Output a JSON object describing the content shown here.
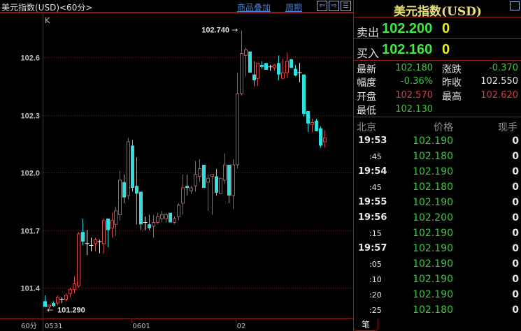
{
  "window": {
    "title": "美元指数(USD)<60分>",
    "overlay_link": "商品叠加",
    "period_link": "周期"
  },
  "chart_data": {
    "type": "candlestick",
    "indicator_label": "K",
    "period_label": "60分",
    "yticks": [
      "101.4",
      "101.7",
      "102.0",
      "102.3",
      "102.6"
    ],
    "ylim": [
      101.25,
      102.79
    ],
    "xlabels": [
      {
        "text": "0531",
        "index": 0
      },
      {
        "text": "0601",
        "index": 21
      },
      {
        "text": "02",
        "index": 46
      }
    ],
    "max_label": "102.740",
    "min_label": "101.290",
    "colors": {
      "up": "#d04848",
      "down": "#30e0e0",
      "flat": "#ffffff",
      "grid": "#8b1a1a"
    },
    "candles": [
      [
        101.33,
        101.36,
        101.3,
        101.3
      ],
      [
        101.3,
        101.31,
        101.29,
        101.31
      ],
      [
        101.32,
        101.33,
        101.3,
        101.305
      ],
      [
        101.32,
        101.36,
        101.31,
        101.35
      ],
      [
        101.34,
        101.35,
        101.32,
        101.34
      ],
      [
        101.34,
        101.37,
        101.33,
        101.36
      ],
      [
        101.37,
        101.4,
        101.35,
        101.39
      ],
      [
        101.39,
        101.46,
        101.37,
        101.42
      ],
      [
        101.41,
        101.69,
        101.4,
        101.68
      ],
      [
        101.69,
        101.76,
        101.62,
        101.64
      ],
      [
        101.63,
        101.7,
        101.57,
        101.63
      ],
      [
        101.62,
        101.66,
        101.59,
        101.62
      ],
      [
        101.63,
        101.66,
        101.59,
        101.65
      ],
      [
        101.64,
        101.65,
        101.58,
        101.64
      ],
      [
        101.63,
        101.76,
        101.58,
        101.75
      ],
      [
        101.76,
        101.76,
        101.61,
        101.7
      ],
      [
        101.71,
        101.79,
        101.66,
        101.75
      ],
      [
        101.73,
        101.82,
        101.67,
        101.8
      ],
      [
        101.78,
        102.01,
        101.75,
        101.96
      ],
      [
        101.95,
        101.99,
        101.84,
        101.87
      ],
      [
        101.88,
        102.18,
        101.86,
        102.16
      ],
      [
        102.14,
        102.17,
        101.9,
        101.92
      ],
      [
        101.93,
        102.08,
        101.73,
        101.89
      ],
      [
        101.9,
        101.9,
        101.7,
        101.73
      ],
      [
        101.74,
        101.77,
        101.7,
        101.74
      ],
      [
        101.73,
        101.78,
        101.7,
        101.71
      ],
      [
        101.72,
        101.78,
        101.66,
        101.74
      ],
      [
        101.74,
        101.79,
        101.73,
        101.77
      ],
      [
        101.76,
        101.8,
        101.74,
        101.78
      ],
      [
        101.76,
        101.79,
        101.74,
        101.78
      ],
      [
        101.79,
        101.79,
        101.74,
        101.74
      ],
      [
        101.74,
        101.77,
        101.73,
        101.76
      ],
      [
        101.77,
        101.84,
        101.75,
        101.83
      ],
      [
        101.84,
        101.99,
        101.78,
        101.92
      ],
      [
        101.93,
        101.99,
        101.88,
        101.92
      ],
      [
        101.905,
        101.93,
        101.89,
        101.92
      ],
      [
        101.93,
        102.06,
        101.9,
        101.99
      ],
      [
        101.98,
        102.07,
        101.95,
        102.02
      ],
      [
        102.04,
        102.04,
        101.92,
        101.92
      ],
      [
        101.95,
        101.99,
        101.8,
        101.97
      ],
      [
        101.98,
        101.99,
        101.78,
        101.99
      ],
      [
        101.98,
        102.02,
        101.88,
        101.895
      ],
      [
        101.89,
        101.97,
        101.89,
        101.97
      ],
      [
        101.96,
        102.1,
        101.94,
        102.04
      ],
      [
        102.04,
        102.04,
        101.84,
        101.88
      ],
      [
        101.88,
        102.07,
        101.81,
        102.04
      ],
      [
        102.04,
        102.52,
        102.02,
        102.41
      ],
      [
        102.41,
        102.74,
        102.4,
        102.62
      ],
      [
        102.61,
        102.65,
        102.5,
        102.64
      ],
      [
        102.63,
        102.63,
        102.53,
        102.52
      ],
      [
        102.51,
        102.58,
        102.45,
        102.48
      ],
      [
        102.49,
        102.57,
        102.45,
        102.57
      ],
      [
        102.56,
        102.58,
        102.54,
        102.55
      ],
      [
        102.57,
        102.57,
        102.54,
        102.535
      ],
      [
        102.55,
        102.56,
        102.53,
        102.55
      ],
      [
        102.545,
        102.565,
        102.53,
        102.56
      ],
      [
        102.57,
        102.61,
        102.48,
        102.51
      ],
      [
        102.49,
        102.59,
        102.49,
        102.52
      ],
      [
        102.52,
        102.625,
        102.49,
        102.58
      ],
      [
        102.59,
        102.59,
        102.55,
        102.545
      ],
      [
        102.54,
        102.56,
        102.5,
        102.505
      ],
      [
        102.52,
        102.57,
        102.47,
        102.52
      ],
      [
        102.51,
        102.51,
        102.29,
        102.305
      ],
      [
        102.32,
        102.32,
        102.21,
        102.255
      ],
      [
        102.25,
        102.28,
        102.21,
        102.26
      ],
      [
        102.27,
        102.28,
        102.22,
        102.215
      ],
      [
        102.23,
        102.24,
        102.13,
        102.14
      ],
      [
        102.16,
        102.22,
        102.13,
        102.18
      ]
    ]
  },
  "quote": {
    "title": "美元指数(USD)",
    "sell_label": "卖出",
    "sell_price": "102.200",
    "sell_vol": "0",
    "buy_label": "买入",
    "buy_price": "102.160",
    "buy_vol": "0",
    "stats": {
      "latest_label": "最新",
      "latest": "102.180",
      "change_label": "涨跌",
      "change": "-0.370",
      "pct_label": "幅度",
      "pct": "-0.36%",
      "prev_label": "昨收",
      "prev": "102.550",
      "open_label": "开盘",
      "open": "102.570",
      "high_label": "最高",
      "high": "102.620",
      "low_label": "最低",
      "low": "102.130"
    },
    "ticks_header": {
      "time": "北京",
      "price": "价格",
      "vol": "现手"
    },
    "ticks": [
      {
        "time": "19:53",
        "price": "102.190",
        "vol": "0"
      },
      {
        "time": ":45",
        "price": "102.180",
        "vol": "0"
      },
      {
        "time": "19:54",
        "price": "102.190",
        "vol": "0"
      },
      {
        "time": ":45",
        "price": "102.180",
        "vol": "0"
      },
      {
        "time": "19:55",
        "price": "102.190",
        "vol": "0"
      },
      {
        "time": "19:56",
        "price": "102.200",
        "vol": "0"
      },
      {
        "time": ":15",
        "price": "102.190",
        "vol": "0"
      },
      {
        "time": "19:57",
        "price": "102.190",
        "vol": "0"
      },
      {
        "time": ":05",
        "price": "102.190",
        "vol": "0"
      },
      {
        "time": ":10",
        "price": "102.190",
        "vol": "0"
      },
      {
        "time": ":20",
        "price": "102.190",
        "vol": "0"
      },
      {
        "time": ":25",
        "price": "102.180",
        "vol": "0"
      }
    ],
    "bottom_tab": "笔"
  }
}
